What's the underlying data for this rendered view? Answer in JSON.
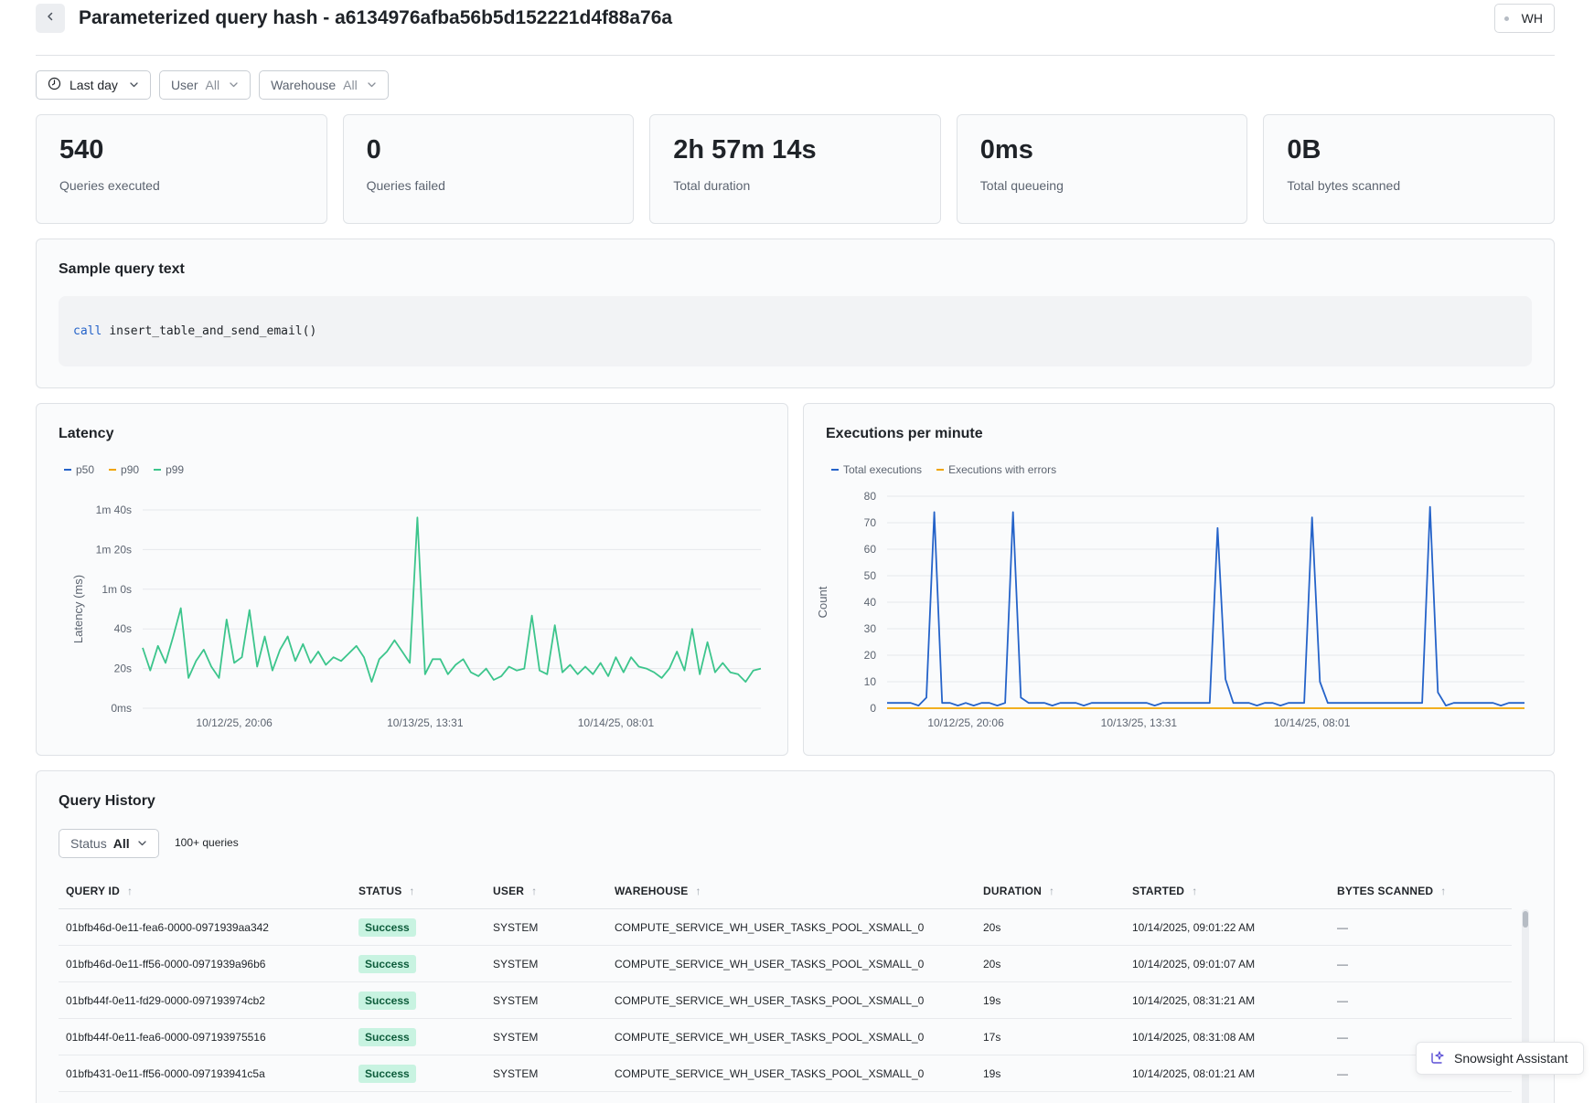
{
  "header": {
    "title": "Parameterized query hash - a6134976afba56b5d152221d4f88a76a",
    "badge": "WH"
  },
  "filters": {
    "time": "Last day",
    "user_label": "User",
    "user_value": "All",
    "warehouse_label": "Warehouse",
    "warehouse_value": "All"
  },
  "stats": [
    {
      "value": "540",
      "label": "Queries executed"
    },
    {
      "value": "0",
      "label": "Queries failed"
    },
    {
      "value": "2h 57m 14s",
      "label": "Total duration"
    },
    {
      "value": "0ms",
      "label": "Total queueing"
    },
    {
      "value": "0B",
      "label": "Total bytes scanned"
    }
  ],
  "sample": {
    "title": "Sample query text",
    "keyword": "call",
    "rest": "insert_table_and_send_email()"
  },
  "latency": {
    "title": "Latency",
    "legend": [
      "p50",
      "p90",
      "p99"
    ]
  },
  "executions": {
    "title": "Executions per minute",
    "legend": [
      "Total executions",
      "Executions with errors"
    ]
  },
  "history": {
    "title": "Query History",
    "status_label": "Status",
    "status_value": "All",
    "count": "100+ queries",
    "columns": [
      "QUERY ID",
      "STATUS",
      "USER",
      "WAREHOUSE",
      "DURATION",
      "STARTED",
      "BYTES SCANNED"
    ],
    "rows": [
      {
        "id": "01bfb46d-0e11-fea6-0000-0971939aa342",
        "status": "Success",
        "user": "SYSTEM",
        "warehouse": "COMPUTE_SERVICE_WH_USER_TASKS_POOL_XSMALL_0",
        "duration": "20s",
        "started": "10/14/2025, 09:01:22 AM",
        "bytes": "—"
      },
      {
        "id": "01bfb46d-0e11-ff56-0000-0971939a96b6",
        "status": "Success",
        "user": "SYSTEM",
        "warehouse": "COMPUTE_SERVICE_WH_USER_TASKS_POOL_XSMALL_0",
        "duration": "20s",
        "started": "10/14/2025, 09:01:07 AM",
        "bytes": "—"
      },
      {
        "id": "01bfb44f-0e11-fd29-0000-097193974cb2",
        "status": "Success",
        "user": "SYSTEM",
        "warehouse": "COMPUTE_SERVICE_WH_USER_TASKS_POOL_XSMALL_0",
        "duration": "19s",
        "started": "10/14/2025, 08:31:21 AM",
        "bytes": "—"
      },
      {
        "id": "01bfb44f-0e11-fea6-0000-097193975516",
        "status": "Success",
        "user": "SYSTEM",
        "warehouse": "COMPUTE_SERVICE_WH_USER_TASKS_POOL_XSMALL_0",
        "duration": "17s",
        "started": "10/14/2025, 08:31:08 AM",
        "bytes": "—"
      },
      {
        "id": "01bfb431-0e11-ff56-0000-097193941c5a",
        "status": "Success",
        "user": "SYSTEM",
        "warehouse": "COMPUTE_SERVICE_WH_USER_TASKS_POOL_XSMALL_0",
        "duration": "19s",
        "started": "10/14/2025, 08:01:21 AM",
        "bytes": "—"
      }
    ]
  },
  "assistant": {
    "label": "Snowsight Assistant"
  },
  "colors": {
    "blue": "#2563c9",
    "amber": "#f0a400",
    "green": "#3cc58c"
  },
  "chart_data": [
    {
      "type": "line",
      "title": "Latency",
      "ylabel": "Latency (ms)",
      "xlabel": "",
      "yticks": [
        "0ms",
        "20s",
        "40s",
        "1m 0s",
        "1m 20s",
        "1m 40s"
      ],
      "ylim": [
        0,
        105000
      ],
      "xticks": [
        "10/12/25, 20:06",
        "10/13/25, 13:31",
        "10/14/25, 08:01"
      ],
      "xticks_index": [
        12,
        37,
        62
      ],
      "legend_position": "top-left",
      "series": [
        {
          "name": "p50",
          "color": "#2563c9",
          "values": []
        },
        {
          "name": "p90",
          "color": "#f0a400",
          "values": []
        },
        {
          "name": "p99",
          "color": "#3cc58c",
          "values": [
            32000,
            20000,
            33000,
            24000,
            38000,
            53000,
            16000,
            25000,
            31000,
            22000,
            16000,
            47000,
            24000,
            27000,
            52000,
            22000,
            38000,
            20000,
            31000,
            38000,
            25000,
            34000,
            24000,
            30000,
            23000,
            27000,
            25000,
            29000,
            33000,
            27000,
            14000,
            26000,
            30000,
            36000,
            30000,
            24000,
            101000,
            18000,
            26000,
            26000,
            18000,
            23000,
            26000,
            19000,
            17000,
            21000,
            15000,
            17000,
            22000,
            20000,
            21000,
            49000,
            20000,
            18000,
            44000,
            19000,
            23000,
            18000,
            22000,
            18000,
            24000,
            17000,
            27000,
            19000,
            27000,
            22000,
            21000,
            19000,
            16000,
            21000,
            30000,
            20000,
            42000,
            18000,
            35000,
            19000,
            24000,
            19000,
            18000,
            14000,
            20000,
            21000
          ]
        }
      ]
    },
    {
      "type": "line",
      "title": "Executions per minute",
      "ylabel": "Count",
      "xlabel": "",
      "yticks": [
        0,
        10,
        20,
        30,
        40,
        50,
        60,
        70,
        80
      ],
      "ylim": [
        0,
        80
      ],
      "xticks": [
        "10/12/25, 20:06",
        "10/13/25, 13:31",
        "10/14/25, 08:01"
      ],
      "xticks_index": [
        10,
        32,
        54
      ],
      "legend_position": "top-left",
      "series": [
        {
          "name": "Total executions",
          "color": "#2563c9",
          "values": [
            2,
            2,
            2,
            2,
            1,
            4,
            74,
            2,
            2,
            1,
            2,
            1,
            2,
            2,
            1,
            2,
            74,
            4,
            2,
            2,
            2,
            1,
            2,
            2,
            2,
            1,
            2,
            2,
            2,
            2,
            2,
            2,
            2,
            2,
            1,
            2,
            2,
            2,
            2,
            2,
            2,
            2,
            68,
            11,
            2,
            2,
            2,
            1,
            2,
            2,
            1,
            2,
            2,
            2,
            72,
            10,
            2,
            2,
            2,
            2,
            2,
            2,
            2,
            2,
            2,
            2,
            2,
            2,
            2,
            76,
            6,
            1,
            2,
            2,
            2,
            2,
            2,
            2,
            1,
            2,
            2,
            2
          ]
        },
        {
          "name": "Executions with errors",
          "color": "#f0a400",
          "values": [
            0,
            0,
            0,
            0,
            0,
            0,
            0,
            0,
            0,
            0,
            0,
            0,
            0,
            0,
            0,
            0,
            0,
            0,
            0,
            0,
            0,
            0,
            0,
            0,
            0,
            0,
            0,
            0,
            0,
            0,
            0,
            0,
            0,
            0,
            0,
            0,
            0,
            0,
            0,
            0,
            0,
            0,
            0,
            0,
            0,
            0,
            0,
            0,
            0,
            0,
            0,
            0,
            0,
            0,
            0,
            0,
            0,
            0,
            0,
            0,
            0,
            0,
            0,
            0,
            0,
            0,
            0,
            0,
            0,
            0,
            0,
            0,
            0,
            0,
            0,
            0,
            0,
            0,
            0,
            0,
            0,
            0
          ]
        }
      ]
    }
  ]
}
